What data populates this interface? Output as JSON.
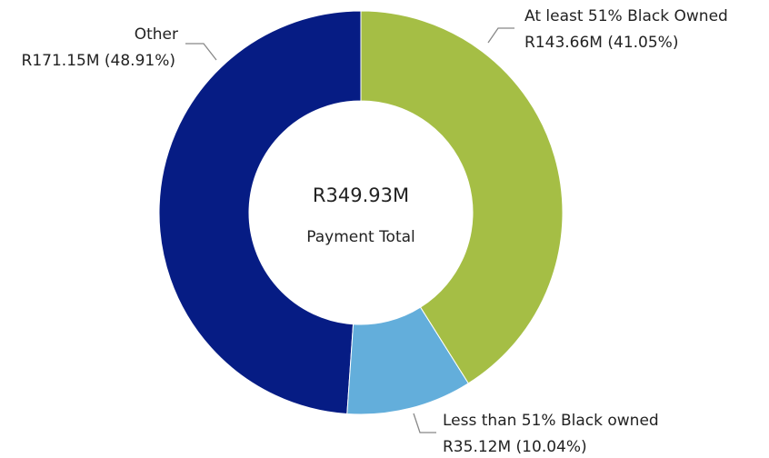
{
  "chart_data": {
    "type": "donut",
    "categories": [
      "At least 51% Black Owned",
      "Less than 51% Black owned",
      "Other"
    ],
    "values": [
      143.66,
      35.12,
      171.15
    ],
    "value_labels": [
      "R143.66M (41.05%)",
      "R35.12M (10.04%)",
      "R171.15M (48.91%)"
    ],
    "colors": [
      "#a5be45",
      "#63aedb",
      "#061c84"
    ],
    "center_value": "R349.93M",
    "center_label": "Payment Total"
  }
}
